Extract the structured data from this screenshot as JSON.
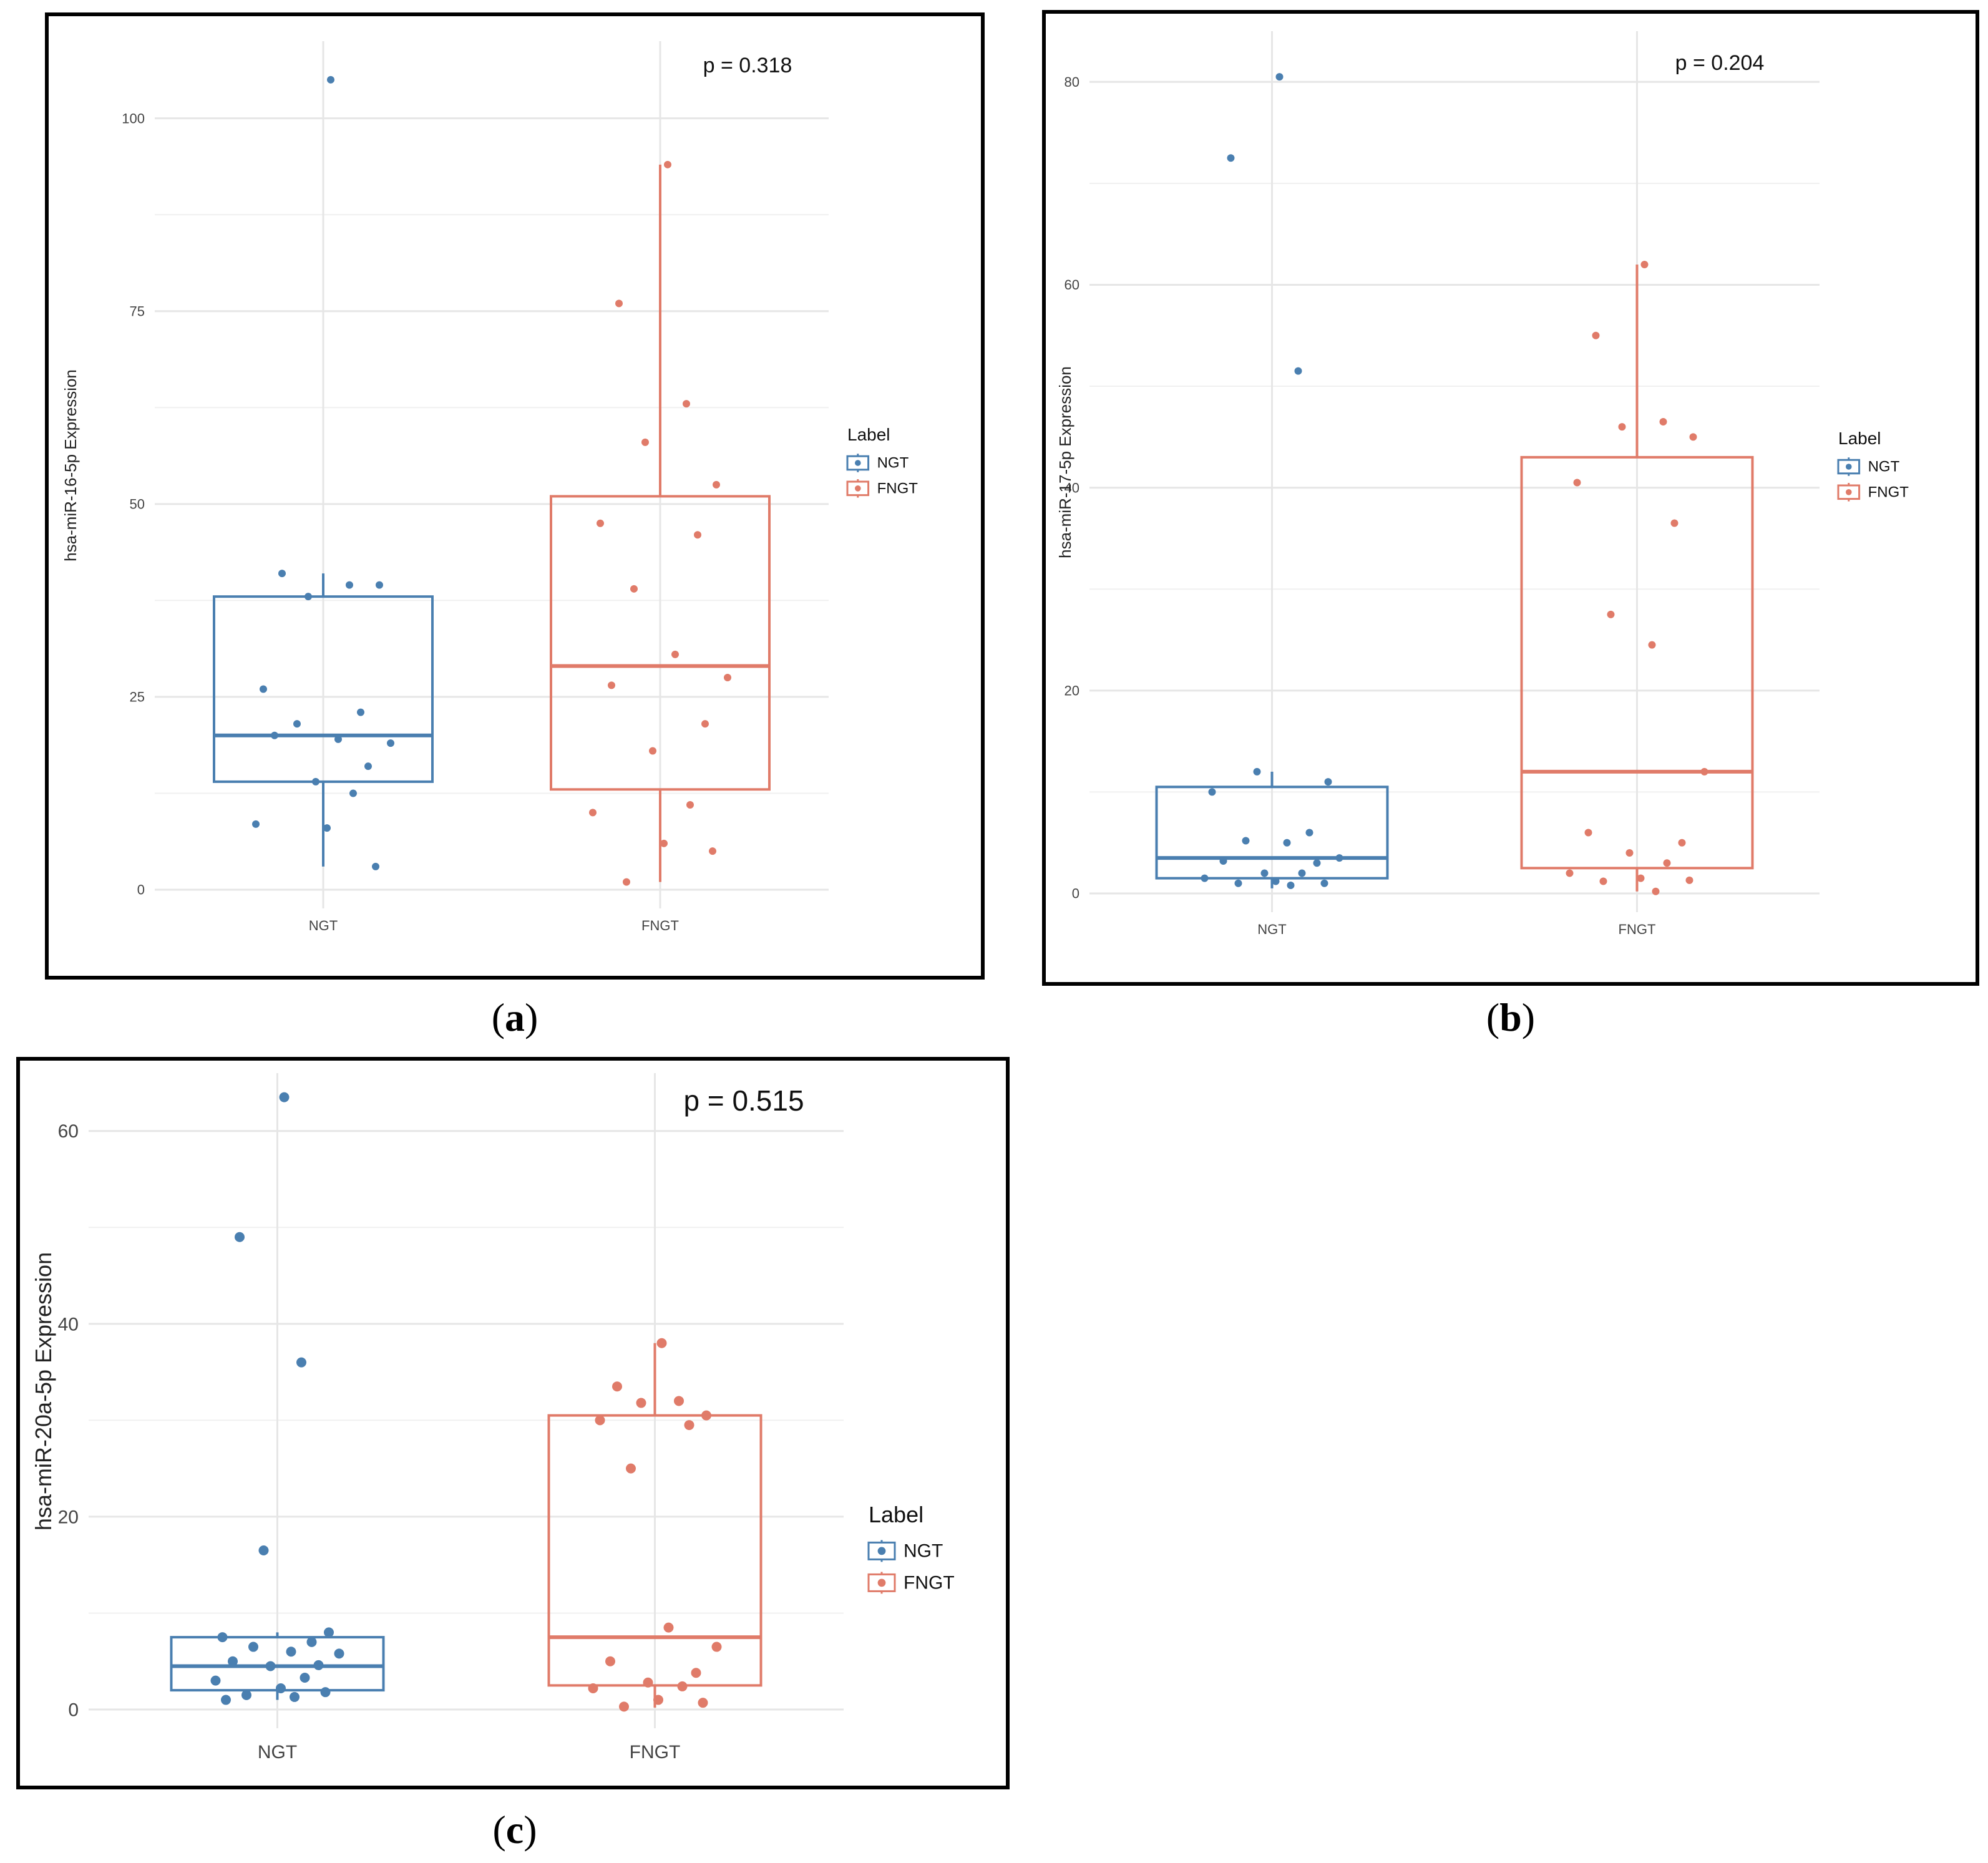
{
  "colors": {
    "NGT": "#4a7fb0",
    "FNGT": "#e07b69",
    "grid": "#e6e6e6",
    "text": "#444444"
  },
  "legend": {
    "title": "Label",
    "entries": [
      "NGT",
      "FNGT"
    ]
  },
  "chart_data": [
    {
      "id": "a",
      "type": "box",
      "caption": "a",
      "title": "",
      "xlabel": "",
      "ylabel": "hsa-miR-16-5p Expression",
      "annotation": "p = 0.318",
      "categories": [
        "NGT",
        "FNGT"
      ],
      "ylim": [
        0,
        110
      ],
      "yticks": [
        0,
        25,
        50,
        75,
        100
      ],
      "yticklabels": [
        "0",
        "25",
        "50",
        "75",
        "100"
      ],
      "series": [
        {
          "name": "NGT",
          "box": {
            "q1": 14,
            "median": 20,
            "q3": 38,
            "whisker_low": 3,
            "whisker_high": 41
          },
          "points": [
            105,
            41,
            39.5,
            38,
            39.5,
            26,
            23,
            21.5,
            19.5,
            19,
            20,
            16,
            14,
            12.5,
            8.5,
            8,
            3
          ]
        },
        {
          "name": "FNGT",
          "box": {
            "q1": 13,
            "median": 29,
            "q3": 51,
            "whisker_low": 1,
            "whisker_high": 94
          },
          "points": [
            94,
            76,
            63,
            58,
            52.5,
            47.5,
            46,
            39,
            30.5,
            27.5,
            26.5,
            21.5,
            18,
            11,
            10,
            6,
            5,
            1
          ]
        }
      ]
    },
    {
      "id": "b",
      "type": "box",
      "caption": "b",
      "title": "",
      "xlabel": "",
      "ylabel": "hsa-miR-17-5p Expression",
      "annotation": "p = 0.204",
      "categories": [
        "NGT",
        "FNGT"
      ],
      "ylim": [
        0,
        85
      ],
      "yticks": [
        0,
        20,
        40,
        60,
        80
      ],
      "yticklabels": [
        "0",
        "20",
        "40",
        "60",
        "80"
      ],
      "series": [
        {
          "name": "NGT",
          "box": {
            "q1": 1.5,
            "median": 3.5,
            "q3": 10.5,
            "whisker_low": 0.5,
            "whisker_high": 12
          },
          "points": [
            80.5,
            72.5,
            51.5,
            12,
            11,
            10,
            6,
            5.2,
            5,
            3.5,
            3.2,
            3,
            2,
            2,
            1.5,
            1.2,
            1,
            1,
            0.8
          ]
        },
        {
          "name": "FNGT",
          "box": {
            "q1": 2.5,
            "median": 12,
            "q3": 43,
            "whisker_low": 0.2,
            "whisker_high": 62
          },
          "points": [
            62,
            55,
            46.5,
            46,
            45,
            40.5,
            36.5,
            27.5,
            24.5,
            12,
            6,
            5,
            4,
            3,
            2,
            1.5,
            1.3,
            1.2,
            0.2
          ]
        }
      ]
    },
    {
      "id": "c",
      "type": "box",
      "caption": "c",
      "title": "",
      "xlabel": "",
      "ylabel": "hsa-miR-20a-5p Expression",
      "annotation": "p = 0.515",
      "categories": [
        "NGT",
        "FNGT"
      ],
      "ylim": [
        0,
        66
      ],
      "yticks": [
        0,
        20,
        40,
        60
      ],
      "yticklabels": [
        "0",
        "20",
        "40",
        "60"
      ],
      "series": [
        {
          "name": "NGT",
          "box": {
            "q1": 2,
            "median": 4.5,
            "q3": 7.5,
            "whisker_low": 1,
            "whisker_high": 8
          },
          "points": [
            63.5,
            49,
            36,
            16.5,
            8,
            7.5,
            7,
            6.5,
            6,
            5.8,
            5,
            4.6,
            4.5,
            3.3,
            3,
            2.2,
            1.8,
            1.5,
            1.3,
            1
          ]
        },
        {
          "name": "FNGT",
          "box": {
            "q1": 2.5,
            "median": 7.5,
            "q3": 30.5,
            "whisker_low": 0.2,
            "whisker_high": 38
          },
          "points": [
            38,
            33.5,
            32,
            31.8,
            30.5,
            30,
            29.5,
            25,
            8.5,
            6.5,
            5,
            3.8,
            2.8,
            2.4,
            2.2,
            1,
            0.7,
            0.3
          ]
        }
      ]
    }
  ]
}
